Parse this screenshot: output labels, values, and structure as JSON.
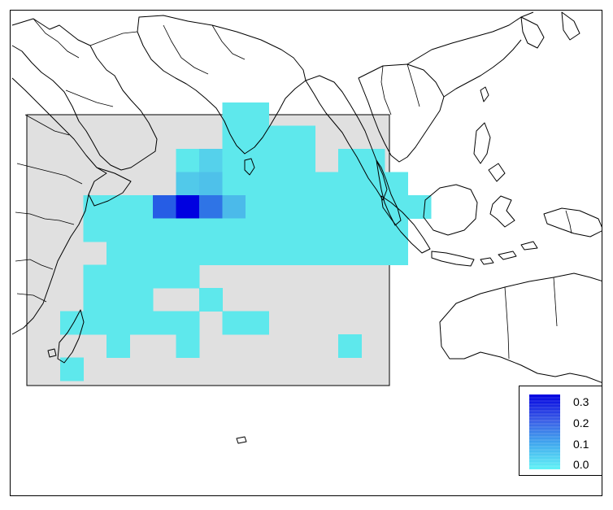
{
  "legend": {
    "labels": [
      "0.3",
      "0.2",
      "0.1",
      "0.0"
    ],
    "max": 0.3,
    "color_low": "#62f4f6",
    "color_high": "#0000e0"
  },
  "colors": {
    "study_region_fill": "#e0e0e0",
    "land_outline": "#000000",
    "grid_low": "#5ee8ec"
  },
  "grid": {
    "cells": [
      {
        "col": 7,
        "row": 0,
        "v": 0.02
      },
      {
        "col": 8,
        "row": 0,
        "v": 0.02
      },
      {
        "col": 7,
        "row": 1,
        "v": 0.01
      },
      {
        "col": 8,
        "row": 1,
        "v": 0.01
      },
      {
        "col": 7,
        "row": 2,
        "v": 0.01
      },
      {
        "col": 8,
        "row": 2,
        "v": 0.01
      },
      {
        "col": 9,
        "row": 2,
        "v": 0.01
      },
      {
        "col": 10,
        "row": 2,
        "v": 0.01
      }
    ]
  }
}
